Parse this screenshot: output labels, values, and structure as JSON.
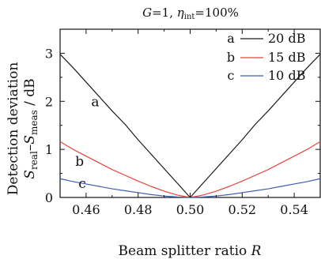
{
  "chart_data": {
    "type": "line",
    "title": {
      "parts": [
        {
          "text": "G",
          "style": "italic"
        },
        {
          "text": "=1, ",
          "style": "normal"
        },
        {
          "text": "η",
          "style": "italic"
        },
        {
          "text": "int",
          "style": "sub"
        },
        {
          "text": "=100%",
          "style": "normal"
        }
      ]
    },
    "xlabel": {
      "parts": [
        {
          "text": "Beam splitter ratio ",
          "style": "normal"
        },
        {
          "text": "R",
          "style": "italic"
        }
      ]
    },
    "ylabel_line1": "Detection deviation",
    "ylabel_line2": {
      "parts": [
        {
          "text": "S",
          "style": "italic"
        },
        {
          "text": "real",
          "style": "sub"
        },
        {
          "text": "–",
          "style": "normal"
        },
        {
          "text": "S",
          "style": "italic"
        },
        {
          "text": "meas",
          "style": "sub"
        },
        {
          "text": " / dB",
          "style": "normal"
        }
      ]
    },
    "xlim": [
      0.45,
      0.55
    ],
    "ylim": [
      0,
      3.5
    ],
    "x_ticks": [
      0.46,
      0.48,
      0.5,
      0.52,
      0.54
    ],
    "x_tick_labels": [
      "0.46",
      "0.48",
      "0.50",
      "0.52",
      "0.54"
    ],
    "y_ticks": [
      0,
      1,
      2,
      3
    ],
    "y_tick_labels": [
      "0",
      "1",
      "2",
      "3"
    ],
    "grid": false,
    "legend_position": "top-right",
    "series": [
      {
        "letter": "a",
        "name": "20 dB",
        "color": "#1a1a1a",
        "x": [
          0.45,
          0.455,
          0.46,
          0.465,
          0.47,
          0.475,
          0.48,
          0.485,
          0.49,
          0.495,
          0.5,
          0.505,
          0.51,
          0.515,
          0.52,
          0.525,
          0.53,
          0.535,
          0.54,
          0.545,
          0.55
        ],
        "values": [
          2.98,
          2.7,
          2.4,
          2.1,
          1.8,
          1.52,
          1.2,
          0.9,
          0.6,
          0.3,
          0.0,
          0.3,
          0.6,
          0.9,
          1.2,
          1.52,
          1.8,
          2.1,
          2.4,
          2.7,
          2.98
        ]
      },
      {
        "letter": "b",
        "name": "15 dB",
        "color": "#e8423a",
        "x": [
          0.45,
          0.455,
          0.46,
          0.465,
          0.47,
          0.475,
          0.48,
          0.485,
          0.49,
          0.495,
          0.5,
          0.505,
          0.51,
          0.515,
          0.52,
          0.525,
          0.53,
          0.535,
          0.54,
          0.545,
          0.55
        ],
        "values": [
          1.16,
          1.0,
          0.86,
          0.72,
          0.58,
          0.46,
          0.34,
          0.23,
          0.13,
          0.05,
          0.0,
          0.05,
          0.13,
          0.23,
          0.34,
          0.46,
          0.58,
          0.72,
          0.86,
          1.0,
          1.16
        ]
      },
      {
        "letter": "c",
        "name": "10 dB",
        "color": "#3a5fb0",
        "x": [
          0.45,
          0.455,
          0.46,
          0.465,
          0.47,
          0.475,
          0.48,
          0.485,
          0.49,
          0.495,
          0.5,
          0.505,
          0.51,
          0.515,
          0.52,
          0.525,
          0.53,
          0.535,
          0.54,
          0.545,
          0.55
        ],
        "values": [
          0.39,
          0.33,
          0.28,
          0.23,
          0.18,
          0.14,
          0.1,
          0.06,
          0.03,
          0.01,
          0.0,
          0.01,
          0.03,
          0.06,
          0.1,
          0.14,
          0.18,
          0.23,
          0.28,
          0.33,
          0.39
        ]
      }
    ],
    "curve_labels": [
      {
        "text": "a",
        "x": 0.4635,
        "y": 1.9
      },
      {
        "text": "b",
        "x": 0.4575,
        "y": 0.66
      },
      {
        "text": "c",
        "x": 0.4585,
        "y": 0.2
      }
    ]
  }
}
